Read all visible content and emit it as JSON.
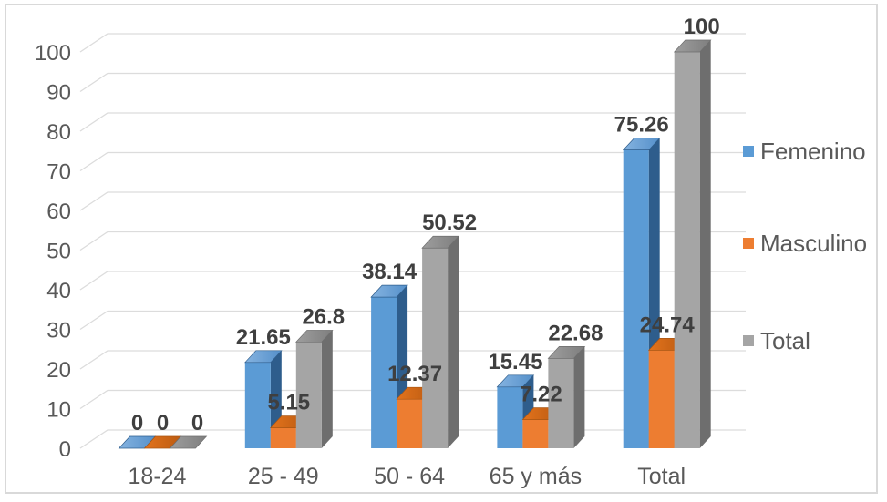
{
  "chart_data": {
    "type": "bar",
    "style": "3d-clustered-column",
    "title": "",
    "xlabel": "",
    "ylabel": "",
    "categories": [
      "18-24",
      "25 - 49",
      "50 - 64",
      "65 y más",
      "Total"
    ],
    "series": [
      {
        "name": "Femenino",
        "values": [
          0,
          21.65,
          38.14,
          15.45,
          75.26
        ],
        "color_front": "#5B9BD5",
        "color_side": "#2E5D8C",
        "color_top_light": "#85B3E0",
        "color_top_dark": "#5590CA"
      },
      {
        "name": "Masculino",
        "values": [
          0,
          5.15,
          12.37,
          7.22,
          24.74
        ],
        "color_front": "#ED7D31",
        "color_side": "#A85614",
        "color_top_light": "#E3731C",
        "color_top_dark": "#BB5B12"
      },
      {
        "name": "Total",
        "values": [
          0,
          26.8,
          50.52,
          22.68,
          100
        ],
        "color_front": "#A5A5A5",
        "color_side": "#6E6E6E",
        "color_top_light": "#9E9E9E",
        "color_top_dark": "#7E7E7E"
      }
    ],
    "axis": {
      "ymin": 0,
      "ymax": 100,
      "tick_step": 10
    },
    "grid": true,
    "legend_position": "right",
    "text_color": "#595959",
    "data_label_color": "#3F3F3F",
    "gridline_color": "#DCDCDC",
    "border_color": "#D9D9D9"
  }
}
